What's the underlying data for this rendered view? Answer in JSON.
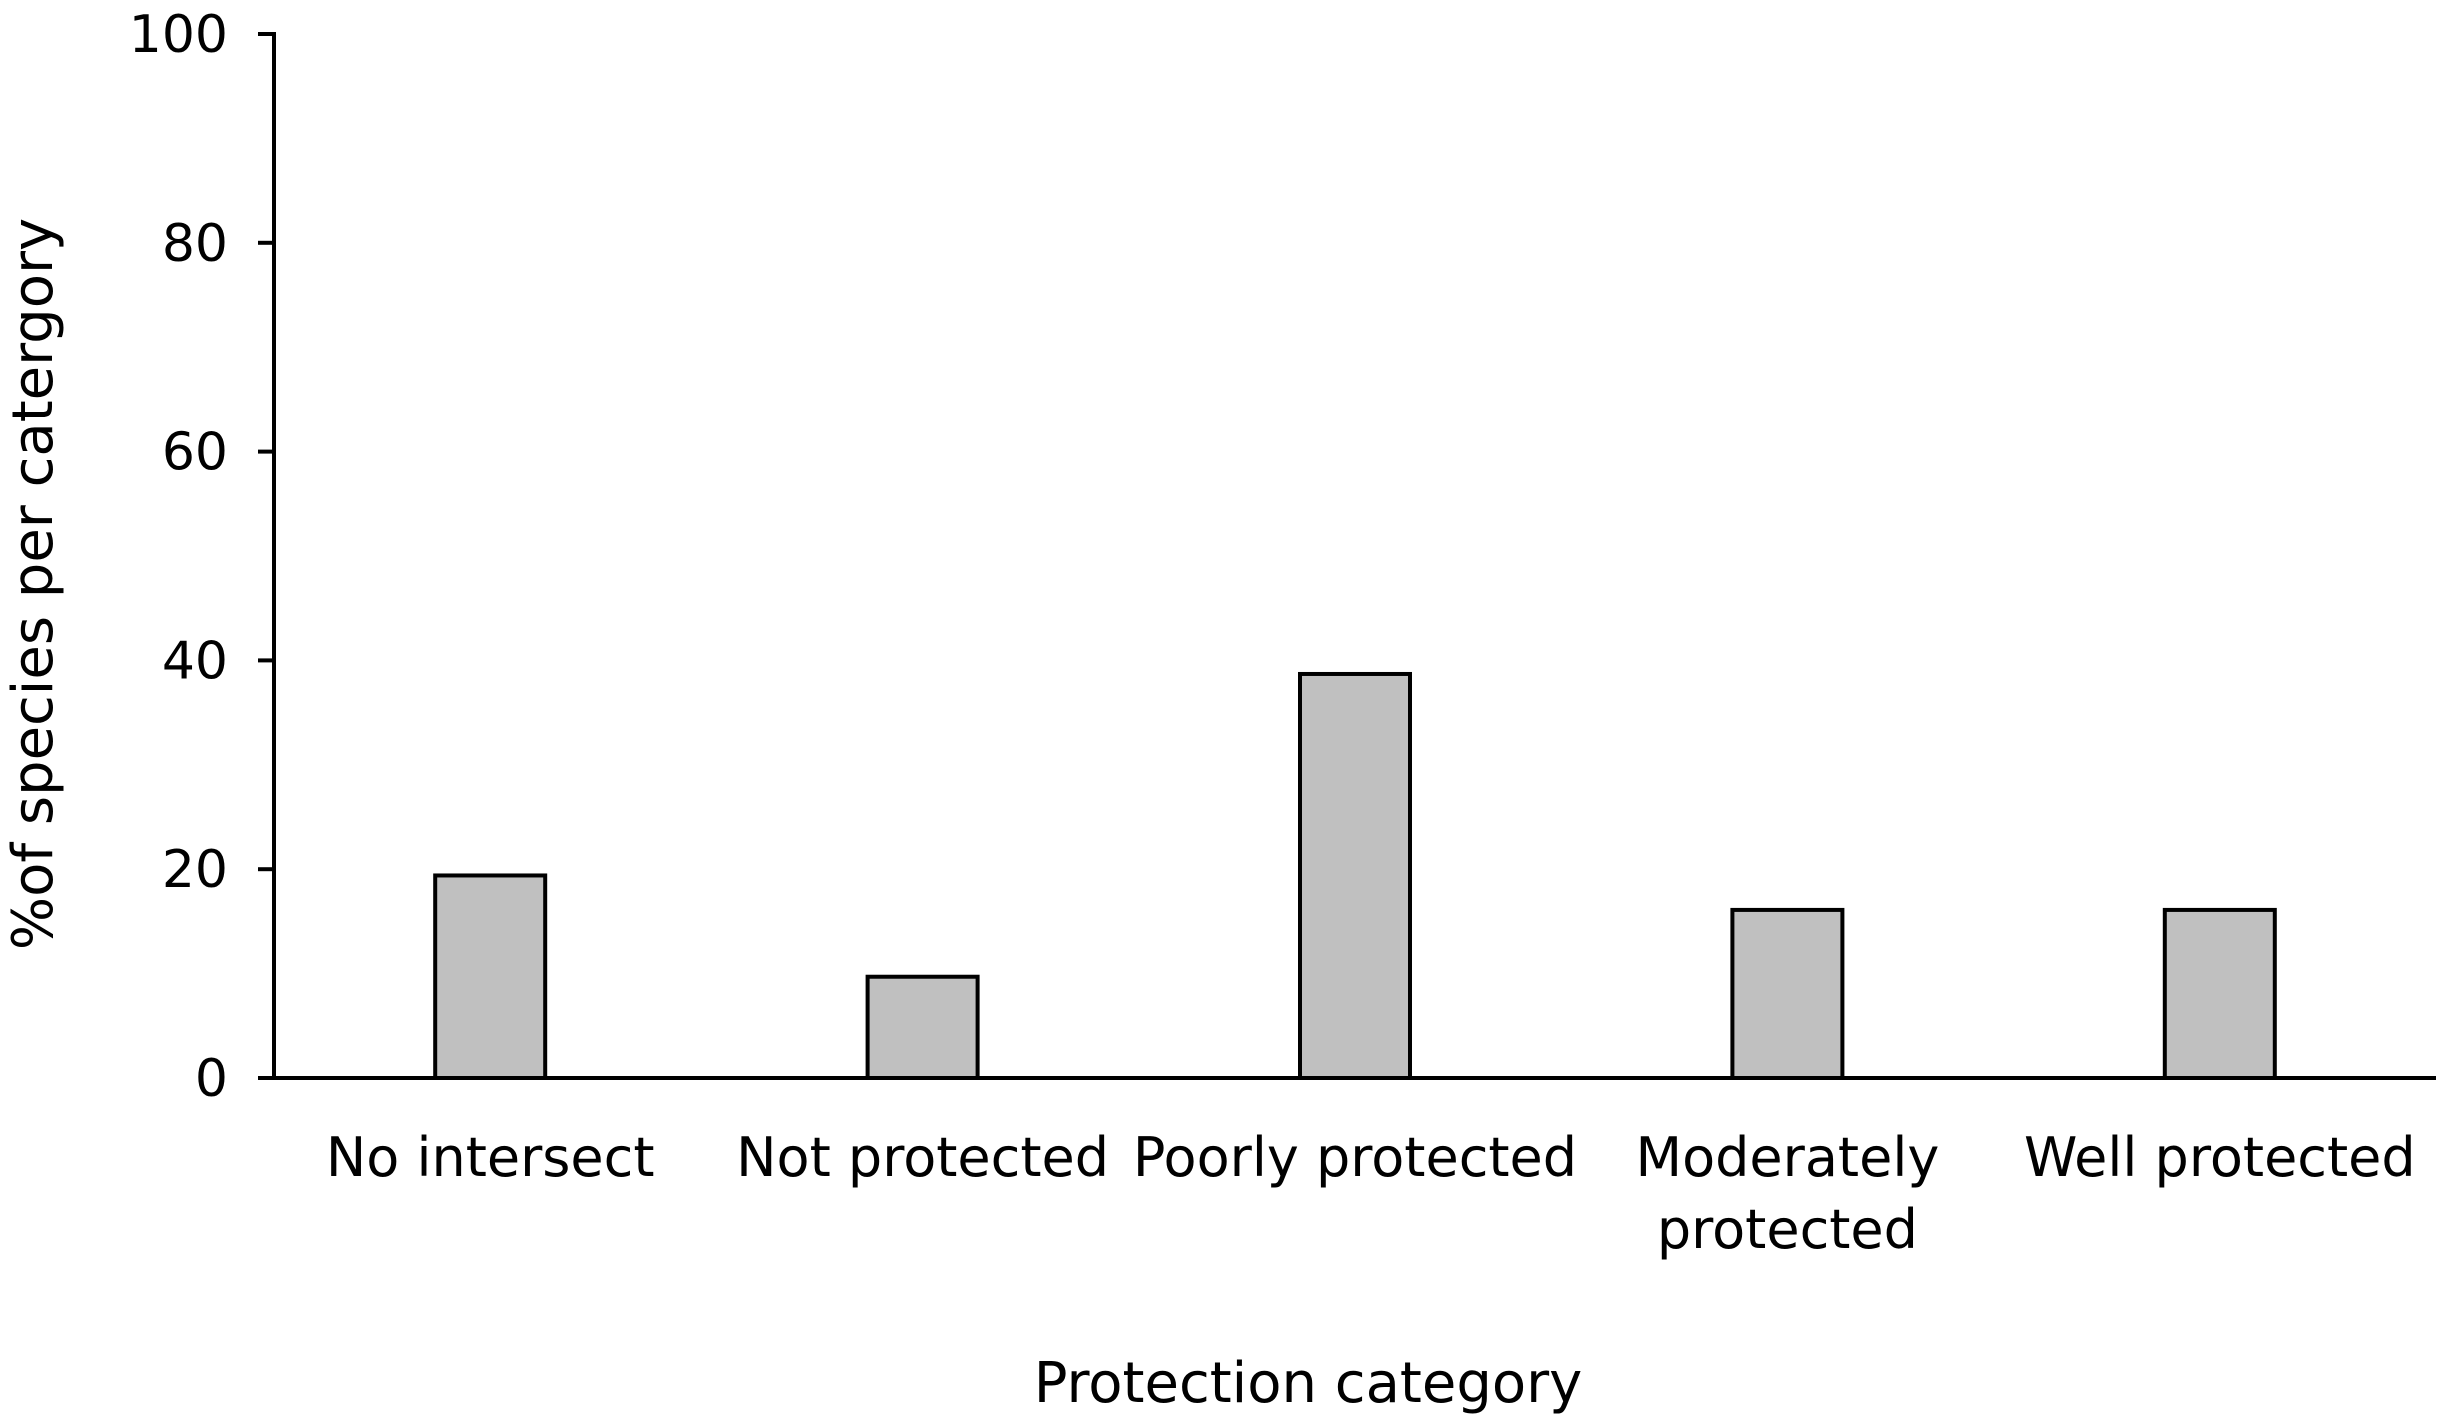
{
  "chart_data": {
    "type": "bar",
    "title": "",
    "xlabel": "Protection category",
    "ylabel": "%of species per catergory",
    "ylim": [
      0,
      100
    ],
    "yticks": [
      0,
      20,
      40,
      60,
      80,
      100
    ],
    "grid": false,
    "legend": "none",
    "categories": [
      [
        "No intersect"
      ],
      [
        "Not protected"
      ],
      [
        "Poorly protected"
      ],
      [
        "Moderately",
        "protected"
      ],
      [
        "Well protected"
      ]
    ],
    "values": [
      19.4,
      9.7,
      38.7,
      16.1,
      16.1
    ],
    "bar_color": "#c0c0c0",
    "bar_edge_color": "#000000"
  }
}
